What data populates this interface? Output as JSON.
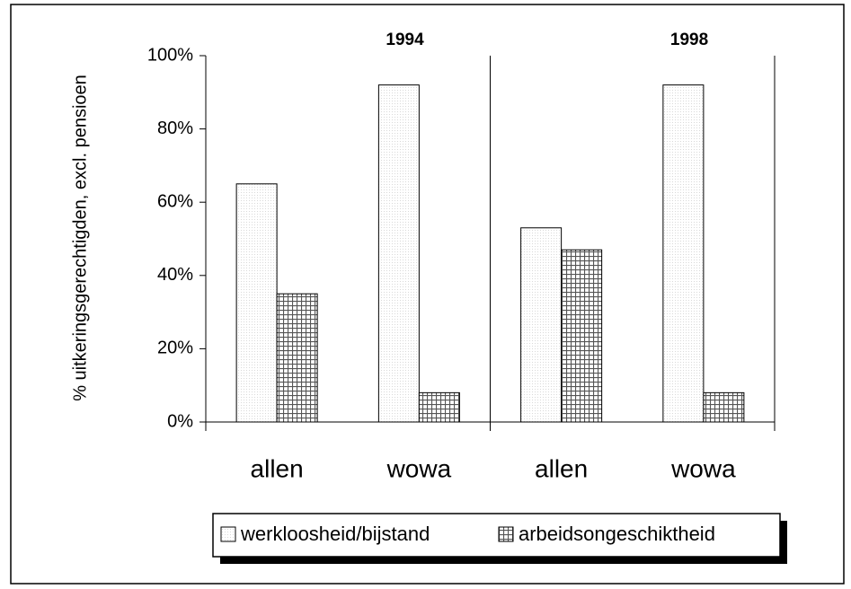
{
  "chart_data": {
    "type": "bar",
    "ylabel": "% uitkeringsgerechtigden, excl. pensioen",
    "groups": [
      "1994",
      "1998"
    ],
    "categories": [
      "allen",
      "wowa",
      "allen",
      "wowa"
    ],
    "series": [
      {
        "name": "werkloosheid/bijstand",
        "color": "#d9d9d9",
        "values": [
          65,
          92,
          53,
          92
        ]
      },
      {
        "name": "arbeidsongeschiktheid",
        "color": "#555555",
        "values": [
          35,
          8,
          47,
          8
        ]
      }
    ],
    "ylim": [
      0,
      100
    ],
    "yticks": [
      {
        "value": 0,
        "label": "0%"
      },
      {
        "value": 20,
        "label": "20%"
      },
      {
        "value": 40,
        "label": "40%"
      },
      {
        "value": 60,
        "label": "60%"
      },
      {
        "value": 80,
        "label": "80%"
      },
      {
        "value": 100,
        "label": "100%"
      }
    ]
  }
}
